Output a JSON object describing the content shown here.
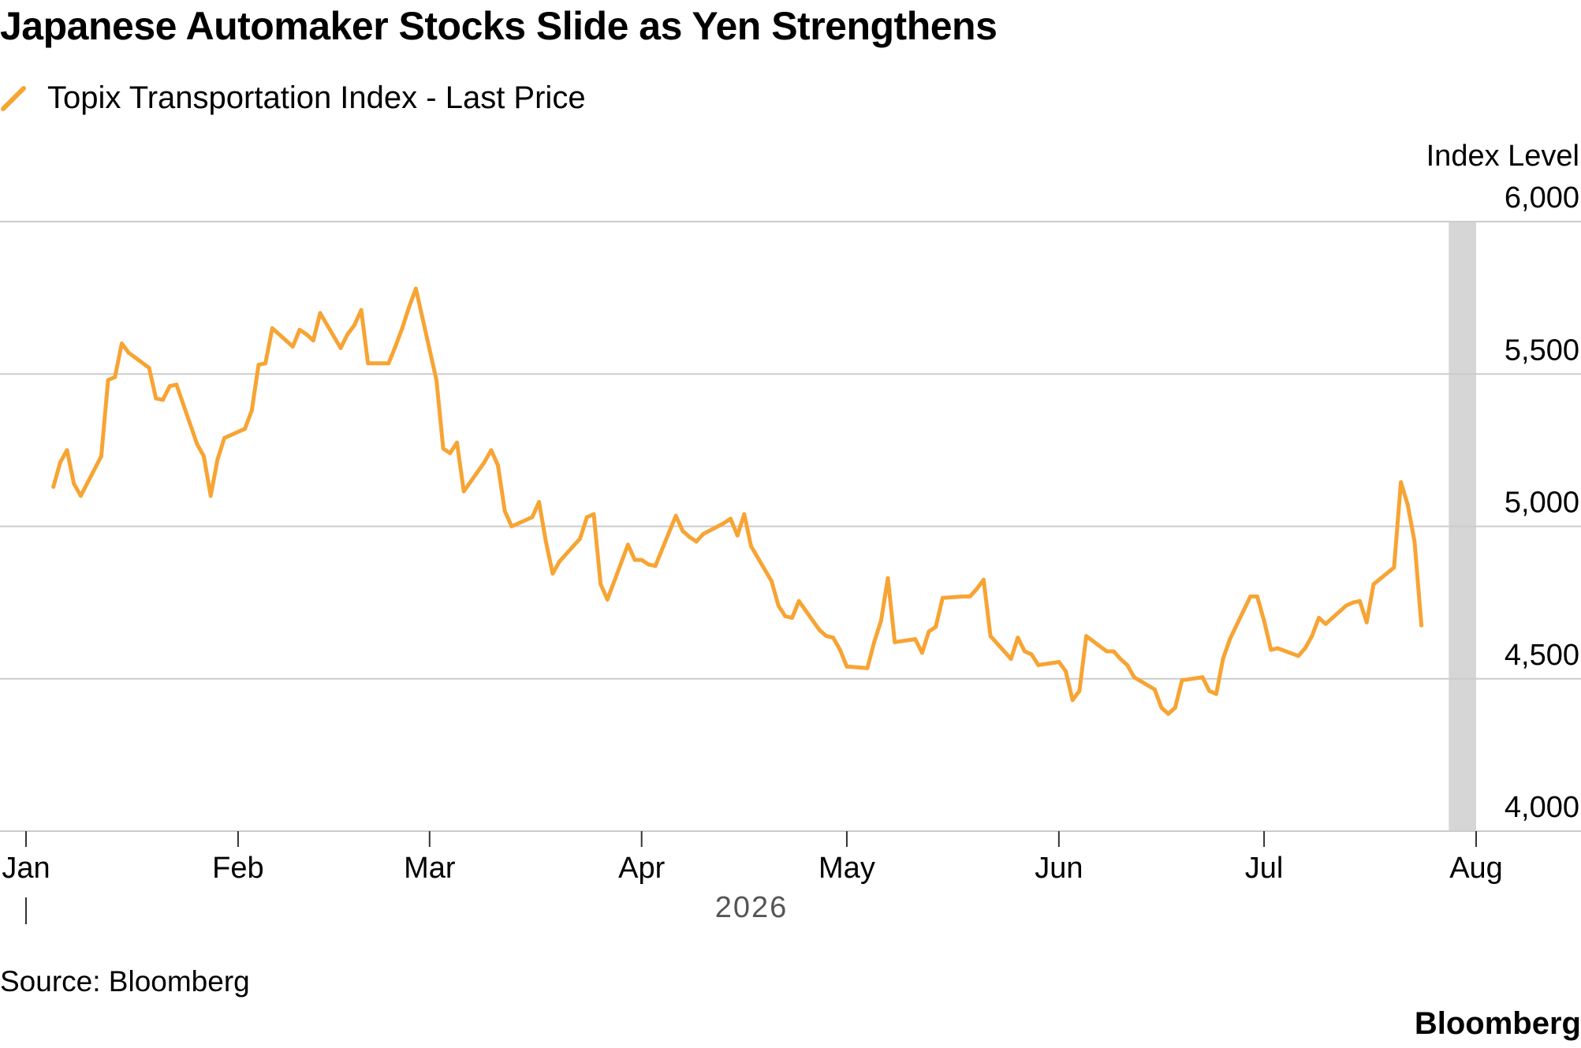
{
  "header": {
    "title": "Japanese Automaker Stocks Slide as Yen Strengthens"
  },
  "legend": {
    "label": "Topix Transportation Index - Last Price",
    "icon": "orange-line-swatch-icon"
  },
  "colors": {
    "series": "#F7A434",
    "grid": "#CCCCCC",
    "highlight_band": "#D6D6D6",
    "text": "#000000",
    "year_label": "#555555"
  },
  "chart_data": {
    "type": "line",
    "title": "Japanese Automaker Stocks Slide as Yen Strengthens",
    "ylabel": "Index Level",
    "xlabel": "",
    "year_label": "2026",
    "ylim": [
      4000,
      6000
    ],
    "y_ticks": [
      4000,
      4500,
      5000,
      5500,
      6000
    ],
    "y_tick_labels": [
      "4,000",
      "4,500",
      "5,000",
      "5,500",
      "6,000"
    ],
    "y_axis_position": "right",
    "grid": true,
    "legend_position": "top-left",
    "x_ticks": [
      {
        "date": "2026-01-01",
        "label": "Jan"
      },
      {
        "date": "2026-02-01",
        "label": "Feb"
      },
      {
        "date": "2026-03-01",
        "label": "Mar"
      },
      {
        "date": "2026-04-01",
        "label": "Apr"
      },
      {
        "date": "2026-05-01",
        "label": "May"
      },
      {
        "date": "2026-06-01",
        "label": "Jun"
      },
      {
        "date": "2026-07-01",
        "label": "Jul"
      },
      {
        "date": "2026-08-01",
        "label": "Aug"
      }
    ],
    "highlight": {
      "start": "2026-07-28",
      "end": "2026-08-01"
    },
    "series": [
      {
        "name": "Topix Transportation Index - Last Price",
        "points": [
          [
            "2026-01-05",
            5130
          ],
          [
            "2026-01-06",
            5210
          ],
          [
            "2026-01-07",
            5250
          ],
          [
            "2026-01-08",
            5140
          ],
          [
            "2026-01-09",
            5100
          ],
          [
            "2026-01-12",
            5230
          ],
          [
            "2026-01-13",
            5480
          ],
          [
            "2026-01-14",
            5490
          ],
          [
            "2026-01-15",
            5600
          ],
          [
            "2026-01-16",
            5570
          ],
          [
            "2026-01-19",
            5520
          ],
          [
            "2026-01-20",
            5420
          ],
          [
            "2026-01-21",
            5415
          ],
          [
            "2026-01-22",
            5460
          ],
          [
            "2026-01-23",
            5465
          ],
          [
            "2026-01-26",
            5270
          ],
          [
            "2026-01-27",
            5230
          ],
          [
            "2026-01-28",
            5100
          ],
          [
            "2026-01-29",
            5220
          ],
          [
            "2026-01-30",
            5290
          ],
          [
            "2026-02-02",
            5320
          ],
          [
            "2026-02-03",
            5380
          ],
          [
            "2026-02-04",
            5530
          ],
          [
            "2026-02-05",
            5535
          ],
          [
            "2026-02-06",
            5650
          ],
          [
            "2026-02-09",
            5590
          ],
          [
            "2026-02-10",
            5645
          ],
          [
            "2026-02-11",
            5630
          ],
          [
            "2026-02-12",
            5610
          ],
          [
            "2026-02-13",
            5700
          ],
          [
            "2026-02-16",
            5585
          ],
          [
            "2026-02-17",
            5630
          ],
          [
            "2026-02-18",
            5660
          ],
          [
            "2026-02-19",
            5710
          ],
          [
            "2026-02-20",
            5535
          ],
          [
            "2026-02-23",
            5535
          ],
          [
            "2026-02-24",
            5590
          ],
          [
            "2026-02-25",
            5650
          ],
          [
            "2026-02-26",
            5720
          ],
          [
            "2026-02-27",
            5780
          ],
          [
            "2026-03-02",
            5480
          ],
          [
            "2026-03-03",
            5255
          ],
          [
            "2026-03-04",
            5240
          ],
          [
            "2026-03-05",
            5275
          ],
          [
            "2026-03-06",
            5115
          ],
          [
            "2026-03-09",
            5210
          ],
          [
            "2026-03-10",
            5250
          ],
          [
            "2026-03-11",
            5200
          ],
          [
            "2026-03-12",
            5050
          ],
          [
            "2026-03-13",
            5000
          ],
          [
            "2026-03-16",
            5030
          ],
          [
            "2026-03-17",
            5080
          ],
          [
            "2026-03-18",
            4950
          ],
          [
            "2026-03-19",
            4845
          ],
          [
            "2026-03-20",
            4885
          ],
          [
            "2026-03-23",
            4960
          ],
          [
            "2026-03-24",
            5030
          ],
          [
            "2026-03-25",
            5040
          ],
          [
            "2026-03-26",
            4810
          ],
          [
            "2026-03-27",
            4760
          ],
          [
            "2026-03-30",
            4940
          ],
          [
            "2026-03-31",
            4890
          ],
          [
            "2026-04-01",
            4890
          ],
          [
            "2026-04-02",
            4875
          ],
          [
            "2026-04-03",
            4870
          ],
          [
            "2026-04-06",
            5035
          ],
          [
            "2026-04-07",
            4985
          ],
          [
            "2026-04-08",
            4965
          ],
          [
            "2026-04-09",
            4950
          ],
          [
            "2026-04-10",
            4975
          ],
          [
            "2026-04-13",
            5010
          ],
          [
            "2026-04-14",
            5025
          ],
          [
            "2026-04-15",
            4970
          ],
          [
            "2026-04-16",
            5040
          ],
          [
            "2026-04-17",
            4935
          ],
          [
            "2026-04-20",
            4820
          ],
          [
            "2026-04-21",
            4740
          ],
          [
            "2026-04-22",
            4705
          ],
          [
            "2026-04-23",
            4700
          ],
          [
            "2026-04-24",
            4755
          ],
          [
            "2026-04-27",
            4660
          ],
          [
            "2026-04-28",
            4640
          ],
          [
            "2026-04-29",
            4635
          ],
          [
            "2026-04-30",
            4595
          ],
          [
            "2026-05-01",
            4540
          ],
          [
            "2026-05-04",
            4535
          ],
          [
            "2026-05-05",
            4620
          ],
          [
            "2026-05-06",
            4690
          ],
          [
            "2026-05-07",
            4830
          ],
          [
            "2026-05-08",
            4620
          ],
          [
            "2026-05-11",
            4630
          ],
          [
            "2026-05-12",
            4585
          ],
          [
            "2026-05-13",
            4655
          ],
          [
            "2026-05-14",
            4670
          ],
          [
            "2026-05-15",
            4765
          ],
          [
            "2026-05-18",
            4770
          ],
          [
            "2026-05-19",
            4770
          ],
          [
            "2026-05-20",
            4795
          ],
          [
            "2026-05-21",
            4825
          ],
          [
            "2026-05-22",
            4640
          ],
          [
            "2026-05-25",
            4565
          ],
          [
            "2026-05-26",
            4635
          ],
          [
            "2026-05-27",
            4590
          ],
          [
            "2026-05-28",
            4580
          ],
          [
            "2026-05-29",
            4545
          ],
          [
            "2026-06-01",
            4555
          ],
          [
            "2026-06-02",
            4525
          ],
          [
            "2026-06-03",
            4430
          ],
          [
            "2026-06-04",
            4460
          ],
          [
            "2026-06-05",
            4640
          ],
          [
            "2026-06-08",
            4590
          ],
          [
            "2026-06-09",
            4590
          ],
          [
            "2026-06-10",
            4565
          ],
          [
            "2026-06-11",
            4545
          ],
          [
            "2026-06-12",
            4505
          ],
          [
            "2026-06-15",
            4465
          ],
          [
            "2026-06-16",
            4405
          ],
          [
            "2026-06-17",
            4385
          ],
          [
            "2026-06-18",
            4405
          ],
          [
            "2026-06-19",
            4495
          ],
          [
            "2026-06-22",
            4505
          ],
          [
            "2026-06-23",
            4460
          ],
          [
            "2026-06-24",
            4450
          ],
          [
            "2026-06-25",
            4565
          ],
          [
            "2026-06-26",
            4630
          ],
          [
            "2026-06-29",
            4770
          ],
          [
            "2026-06-30",
            4770
          ],
          [
            "2026-07-01",
            4690
          ],
          [
            "2026-07-02",
            4595
          ],
          [
            "2026-07-03",
            4600
          ],
          [
            "2026-07-06",
            4575
          ],
          [
            "2026-07-07",
            4600
          ],
          [
            "2026-07-08",
            4640
          ],
          [
            "2026-07-09",
            4700
          ],
          [
            "2026-07-10",
            4680
          ],
          [
            "2026-07-13",
            4740
          ],
          [
            "2026-07-14",
            4750
          ],
          [
            "2026-07-15",
            4755
          ],
          [
            "2026-07-16",
            4685
          ],
          [
            "2026-07-17",
            4810
          ],
          [
            "2026-07-20",
            4865
          ],
          [
            "2026-07-21",
            5145
          ],
          [
            "2026-07-22",
            5070
          ],
          [
            "2026-07-23",
            4950
          ],
          [
            "2026-07-24",
            4675
          ]
        ]
      }
    ]
  },
  "footer": {
    "source": "Source: Bloomberg",
    "brand": "Bloomberg"
  }
}
